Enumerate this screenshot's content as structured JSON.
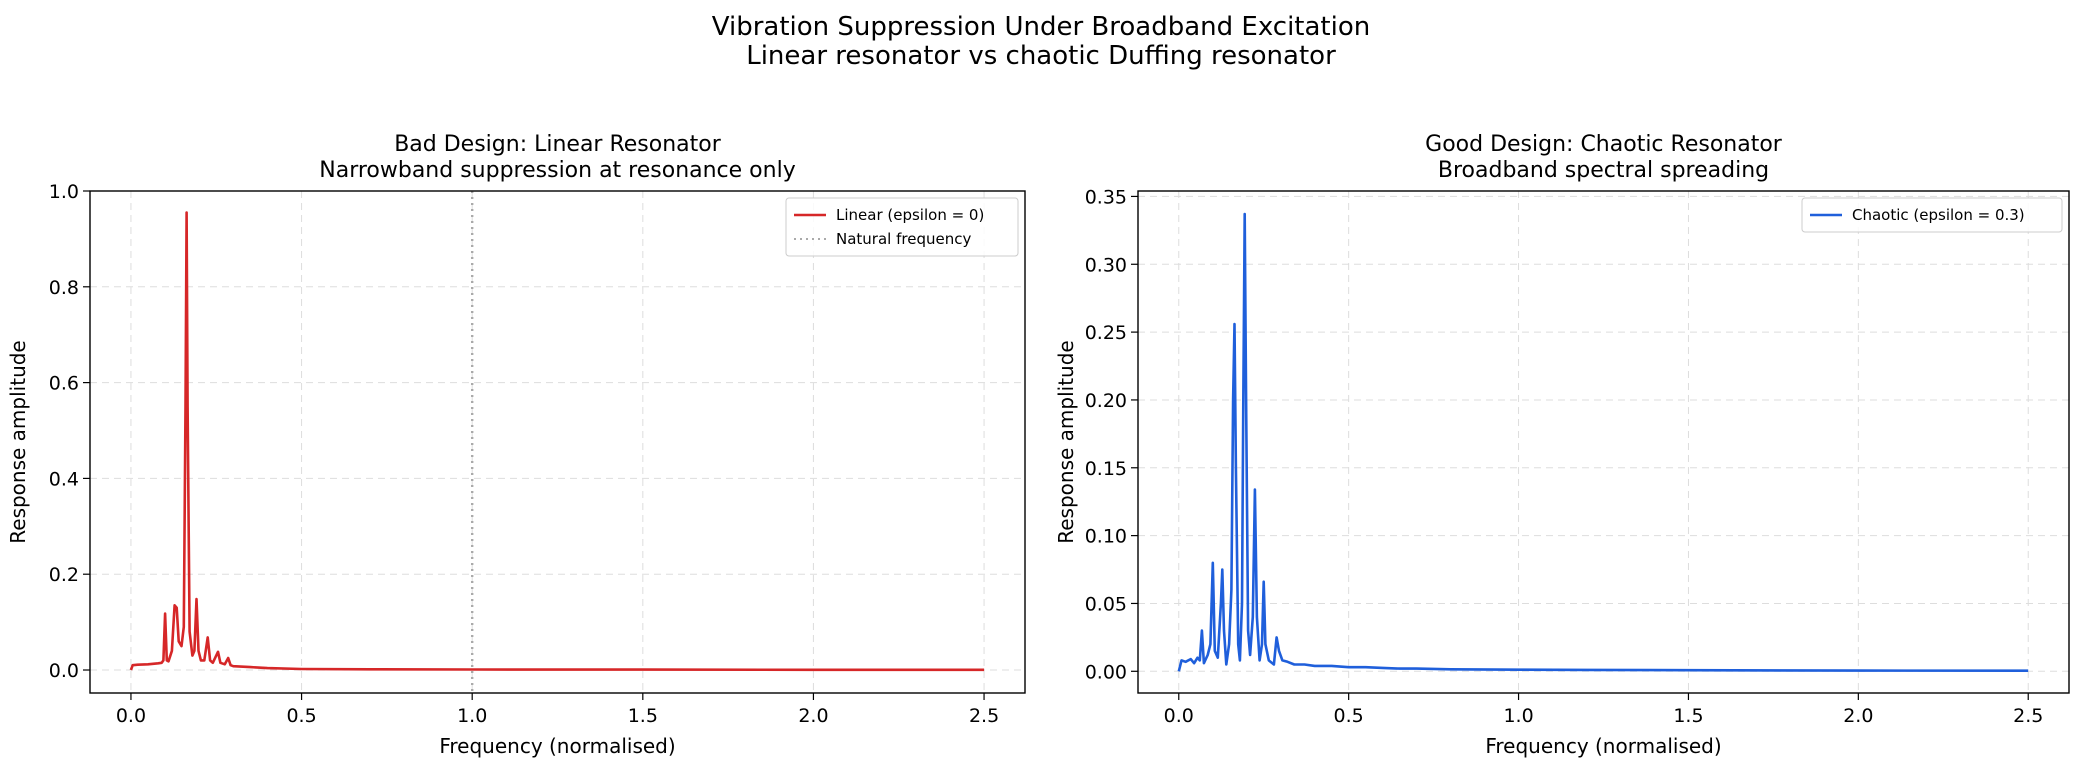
{
  "figure": {
    "title_line1": "Vibration Suppression Under Broadband Excitation",
    "title_line2": "Linear resonator vs chaotic Duffing resonator"
  },
  "chart_data": [
    {
      "type": "line",
      "title_line1": "Bad Design: Linear Resonator",
      "title_line2": "Narrowband suppression at resonance only",
      "xlabel": "Frequency (normalised)",
      "ylabel": "Response amplitude",
      "xlim": [
        -0.12,
        2.62
      ],
      "ylim": [
        -0.048,
        1.0
      ],
      "xticks": [
        0.0,
        0.5,
        1.0,
        1.5,
        2.0,
        2.5
      ],
      "xticklabels": [
        "0.0",
        "0.5",
        "1.0",
        "1.5",
        "2.0",
        "2.5"
      ],
      "yticks": [
        0.0,
        0.2,
        0.4,
        0.6,
        0.8,
        1.0
      ],
      "yticklabels": [
        "0.0",
        "0.2",
        "0.4",
        "0.6",
        "0.8",
        "1.0"
      ],
      "grid": true,
      "legend_position": "top-right",
      "series": [
        {
          "name": "Linear (epsilon = 0)",
          "color": "#d62728",
          "style": "solid",
          "points": [
            [
              0.0,
              0.0
            ],
            [
              0.005,
              0.01
            ],
            [
              0.02,
              0.011
            ],
            [
              0.05,
              0.012
            ],
            [
              0.08,
              0.014
            ],
            [
              0.09,
              0.015
            ],
            [
              0.095,
              0.02
            ],
            [
              0.1,
              0.118
            ],
            [
              0.105,
              0.02
            ],
            [
              0.11,
              0.018
            ],
            [
              0.12,
              0.04
            ],
            [
              0.128,
              0.135
            ],
            [
              0.134,
              0.13
            ],
            [
              0.14,
              0.06
            ],
            [
              0.148,
              0.05
            ],
            [
              0.155,
              0.09
            ],
            [
              0.16,
              0.55
            ],
            [
              0.163,
              0.955
            ],
            [
              0.166,
              0.55
            ],
            [
              0.172,
              0.08
            ],
            [
              0.18,
              0.03
            ],
            [
              0.186,
              0.04
            ],
            [
              0.192,
              0.148
            ],
            [
              0.198,
              0.04
            ],
            [
              0.205,
              0.02
            ],
            [
              0.215,
              0.02
            ],
            [
              0.225,
              0.068
            ],
            [
              0.232,
              0.02
            ],
            [
              0.24,
              0.015
            ],
            [
              0.255,
              0.038
            ],
            [
              0.262,
              0.015
            ],
            [
              0.275,
              0.012
            ],
            [
              0.285,
              0.025
            ],
            [
              0.292,
              0.01
            ],
            [
              0.3,
              0.008
            ],
            [
              0.35,
              0.006
            ],
            [
              0.4,
              0.004
            ],
            [
              0.5,
              0.002
            ],
            [
              0.7,
              0.0015
            ],
            [
              1.0,
              0.001
            ],
            [
              1.5,
              0.0008
            ],
            [
              2.0,
              0.0005
            ],
            [
              2.5,
              0.0004
            ]
          ]
        },
        {
          "name": "Natural frequency",
          "color": "#aaaaaa",
          "style": "dotted",
          "vertical_x": 1.0
        }
      ]
    },
    {
      "type": "line",
      "title_line1": "Good Design: Chaotic Resonator",
      "title_line2": "Broadband spectral spreading",
      "xlabel": "Frequency (normalised)",
      "ylabel": "Response amplitude",
      "xlim": [
        -0.12,
        2.62
      ],
      "ylim": [
        -0.016,
        0.354
      ],
      "xticks": [
        0.0,
        0.5,
        1.0,
        1.5,
        2.0,
        2.5
      ],
      "xticklabels": [
        "0.0",
        "0.5",
        "1.0",
        "1.5",
        "2.0",
        "2.5"
      ],
      "yticks": [
        0.0,
        0.05,
        0.1,
        0.15,
        0.2,
        0.25,
        0.3,
        0.35
      ],
      "yticklabels": [
        "0.00",
        "0.05",
        "0.10",
        "0.15",
        "0.20",
        "0.25",
        "0.30",
        "0.35"
      ],
      "grid": true,
      "legend_position": "top-right",
      "series": [
        {
          "name": "Chaotic (epsilon = 0.3)",
          "color": "#1f5fdb",
          "style": "solid",
          "points": [
            [
              0.0,
              0.0
            ],
            [
              0.008,
              0.008
            ],
            [
              0.02,
              0.007
            ],
            [
              0.035,
              0.009
            ],
            [
              0.045,
              0.006
            ],
            [
              0.055,
              0.01
            ],
            [
              0.062,
              0.008
            ],
            [
              0.068,
              0.03
            ],
            [
              0.074,
              0.006
            ],
            [
              0.085,
              0.012
            ],
            [
              0.093,
              0.02
            ],
            [
              0.1,
              0.08
            ],
            [
              0.106,
              0.015
            ],
            [
              0.115,
              0.01
            ],
            [
              0.124,
              0.05
            ],
            [
              0.128,
              0.075
            ],
            [
              0.133,
              0.03
            ],
            [
              0.14,
              0.005
            ],
            [
              0.148,
              0.02
            ],
            [
              0.155,
              0.06
            ],
            [
              0.16,
              0.2
            ],
            [
              0.164,
              0.256
            ],
            [
              0.168,
              0.15
            ],
            [
              0.175,
              0.02
            ],
            [
              0.18,
              0.008
            ],
            [
              0.186,
              0.05
            ],
            [
              0.19,
              0.2
            ],
            [
              0.194,
              0.337
            ],
            [
              0.198,
              0.2
            ],
            [
              0.204,
              0.03
            ],
            [
              0.21,
              0.012
            ],
            [
              0.218,
              0.04
            ],
            [
              0.224,
              0.134
            ],
            [
              0.23,
              0.04
            ],
            [
              0.238,
              0.008
            ],
            [
              0.245,
              0.02
            ],
            [
              0.25,
              0.066
            ],
            [
              0.255,
              0.02
            ],
            [
              0.265,
              0.008
            ],
            [
              0.28,
              0.005
            ],
            [
              0.288,
              0.025
            ],
            [
              0.295,
              0.015
            ],
            [
              0.305,
              0.008
            ],
            [
              0.32,
              0.007
            ],
            [
              0.34,
              0.005
            ],
            [
              0.37,
              0.005
            ],
            [
              0.4,
              0.004
            ],
            [
              0.45,
              0.004
            ],
            [
              0.5,
              0.003
            ],
            [
              0.55,
              0.003
            ],
            [
              0.6,
              0.0025
            ],
            [
              0.65,
              0.002
            ],
            [
              0.7,
              0.002
            ],
            [
              0.8,
              0.0015
            ],
            [
              1.0,
              0.0012
            ],
            [
              1.2,
              0.001
            ],
            [
              1.5,
              0.0008
            ],
            [
              2.0,
              0.0005
            ],
            [
              2.5,
              0.0004
            ]
          ]
        }
      ]
    }
  ]
}
